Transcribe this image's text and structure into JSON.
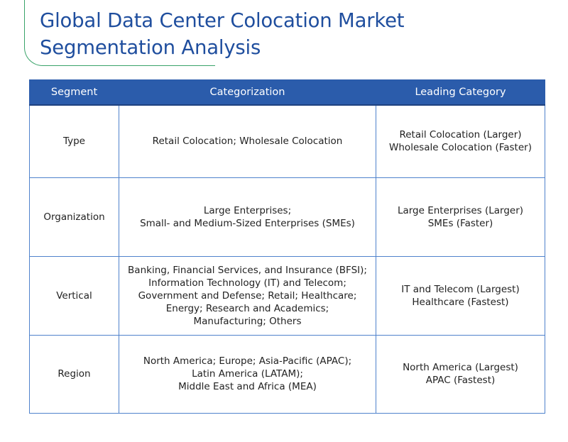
{
  "title": {
    "line1": "Global Data Center Colocation Market",
    "line2": "Segmentation Analysis"
  },
  "table": {
    "headers": [
      "Segment",
      "Categorization",
      "Leading Category"
    ],
    "rows": [
      {
        "segment": "Type",
        "categorization": [
          "Retail Colocation; Wholesale Colocation"
        ],
        "leading": [
          "Retail Colocation (Larger)",
          "Wholesale Colocation (Faster)"
        ]
      },
      {
        "segment": "Organization",
        "categorization": [
          "Large Enterprises;",
          "Small- and Medium-Sized Enterprises (SMEs)"
        ],
        "leading": [
          "Large Enterprises (Larger)",
          "SMEs (Faster)"
        ]
      },
      {
        "segment": "Vertical",
        "categorization": [
          "Banking, Financial Services, and Insurance (BFSI);",
          "Information Technology (IT) and Telecom;",
          "Government and Defense; Retail; Healthcare;",
          "Energy; Research and Academics;",
          "Manufacturing; Others"
        ],
        "leading": [
          "IT and Telecom (Largest)",
          "Healthcare (Fastest)"
        ]
      },
      {
        "segment": "Region",
        "categorization": [
          "North America; Europe; Asia-Pacific (APAC);",
          "Latin America (LATAM);",
          "Middle East and Africa (MEA)"
        ],
        "leading": [
          "North America (Largest)",
          "APAC (Fastest)"
        ]
      }
    ]
  },
  "colors": {
    "title": "#1f4e9e",
    "header_bg": "#2b5cab",
    "border": "#4f82cc",
    "accent_line": "#3aa36a"
  }
}
